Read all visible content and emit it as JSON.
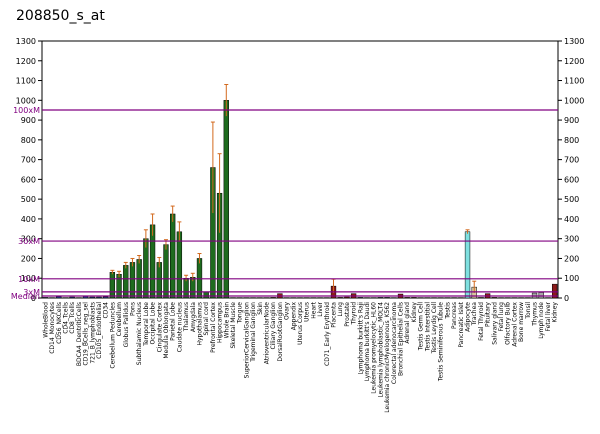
{
  "title": "208850_s_at",
  "chart_data": {
    "type": "bar",
    "title": "208850_s_at",
    "ylim": [
      0,
      1300
    ],
    "yticks": [
      0,
      100,
      200,
      300,
      400,
      500,
      600,
      700,
      800,
      900,
      1000,
      1100,
      1200,
      1300
    ],
    "reference_lines": [
      {
        "label": "100xM",
        "value": 951
      },
      {
        "label": "30xM",
        "value": 288
      },
      {
        "label": "10xM",
        "value": 97
      },
      {
        "label": "3xM",
        "value": 31
      },
      {
        "label": "Median",
        "value": 10
      }
    ],
    "categories": [
      "WholeBlood",
      "CD14_Monocytes",
      "CD56_NKCells",
      "CD4_Tcells",
      "CD8_Tcells",
      "BDCA4_DentriticCells",
      "CD19_BCells_neg_sel",
      "721_B_lymphoblasts",
      "CD105_Endothelial",
      "CD34",
      "Cerebellum Peduncles",
      "Cerebellum",
      "Globus Pallidus",
      "Pons",
      "Subthalamic Nucleus",
      "Temporal Lobe",
      "Occipital Lobe",
      "Cingulate Cortex",
      "Medulla Oblongata",
      "Parietal Lobe",
      "Caudate nucleus",
      "Thalamus",
      "Amygdala",
      "Hypothalamus",
      "Spinal cord",
      "Prefrontal Cortex",
      "Hippocampus",
      "Whole Brain",
      "Skeletal Muscle",
      "Tongue",
      "SuperiorCervicalGanglion",
      "Trigeminal Ganglion",
      "Skin",
      "AtrioventricularNode",
      "Ciliary Ganglion",
      "DorsalRootGanglion",
      "Ovary",
      "Appendix",
      "Uterus Corpus",
      "Uterus",
      "Heart",
      "Liver",
      "CD71_Early Erythroid",
      "Placenta",
      "Lung",
      "Prostate",
      "Thyroid",
      "Lymphoma burkitt's Raji",
      "Lymphoma burkitt's Daudi",
      "Leukemia promyelocytic_HL60",
      "Leukemia lymphoblastic_MOLT4",
      "Leukemia chronicMyelogenous_K562",
      "Colorectal adenocarcinoma",
      "Bronchial Epithelial Cells",
      "Adrenal gland",
      "Kidney",
      "Testis Germ Cell",
      "Testis Interstitial",
      "Testis Leydig Cell",
      "Testis Seminiferous Tubule",
      "Testis",
      "Pancreas",
      "Pancreatic Islet",
      "Adipocyte",
      "Trachea",
      "Fetal Thyroid",
      "Pituitary",
      "Salivary gland",
      "Fetal lung",
      "Olfactory Bulb",
      "Adrenal Cortex",
      "Bone marrow",
      "Tonsil",
      "Thymus",
      "Lymph node",
      "Fetal liver",
      "Kidney"
    ],
    "values": [
      3,
      2,
      8,
      2,
      5,
      2,
      10,
      5,
      5,
      6,
      130,
      120,
      165,
      180,
      195,
      300,
      370,
      180,
      270,
      425,
      335,
      100,
      105,
      200,
      30,
      660,
      530,
      1000,
      2,
      2,
      2,
      2,
      2,
      2,
      3,
      22,
      2,
      2,
      2,
      2,
      2,
      2,
      2,
      60,
      3,
      5,
      22,
      3,
      2,
      2,
      3,
      3,
      2,
      20,
      3,
      3,
      2,
      2,
      2,
      2,
      2,
      2,
      2,
      335,
      55,
      3,
      22,
      3,
      2,
      2,
      2,
      2,
      2,
      25,
      28,
      2,
      70
    ],
    "errors": [
      0,
      0,
      0,
      0,
      0,
      0,
      0,
      0,
      0,
      0,
      10,
      15,
      15,
      20,
      20,
      45,
      55,
      25,
      25,
      40,
      50,
      15,
      20,
      25,
      0,
      230,
      200,
      80,
      0,
      0,
      0,
      0,
      0,
      0,
      0,
      0,
      0,
      0,
      0,
      0,
      0,
      0,
      0,
      35,
      0,
      0,
      0,
      0,
      0,
      0,
      0,
      0,
      0,
      0,
      0,
      0,
      0,
      0,
      0,
      0,
      0,
      0,
      0,
      10,
      30,
      0,
      0,
      0,
      0,
      0,
      0,
      0,
      0,
      0,
      0,
      0,
      0
    ],
    "series_colors": {
      "blood": "#2e3b8e",
      "brain": "#1e6b1e",
      "other": "#8b1a1a",
      "highlight": "#7fe0e0",
      "tan": "#d8c7a0",
      "gray": "#a8a8a8",
      "reference": "#800080",
      "error": "#d2691e"
    },
    "bar_color_groups": [
      "blood",
      "blood",
      "blood",
      "blood",
      "blood",
      "blood",
      "blood",
      "blood",
      "blood",
      "blood",
      "brain",
      "brain",
      "brain",
      "brain",
      "brain",
      "brain",
      "brain",
      "brain",
      "brain",
      "brain",
      "brain",
      "brain",
      "brain",
      "brain",
      "brain",
      "brain",
      "brain",
      "brain",
      "other",
      "other",
      "other",
      "other",
      "other",
      "other",
      "other",
      "other",
      "other",
      "other",
      "other",
      "other",
      "other",
      "other",
      "other",
      "other",
      "other",
      "other",
      "other",
      "blood",
      "blood",
      "blood",
      "blood",
      "blood",
      "blood",
      "other",
      "other",
      "other",
      "other",
      "other",
      "other",
      "other",
      "other",
      "other",
      "other",
      "highlight",
      "tan",
      "tan",
      "other",
      "other",
      "other",
      "other",
      "other",
      "other",
      "other",
      "gray",
      "gray",
      "gray",
      "other"
    ],
    "grid": false
  }
}
